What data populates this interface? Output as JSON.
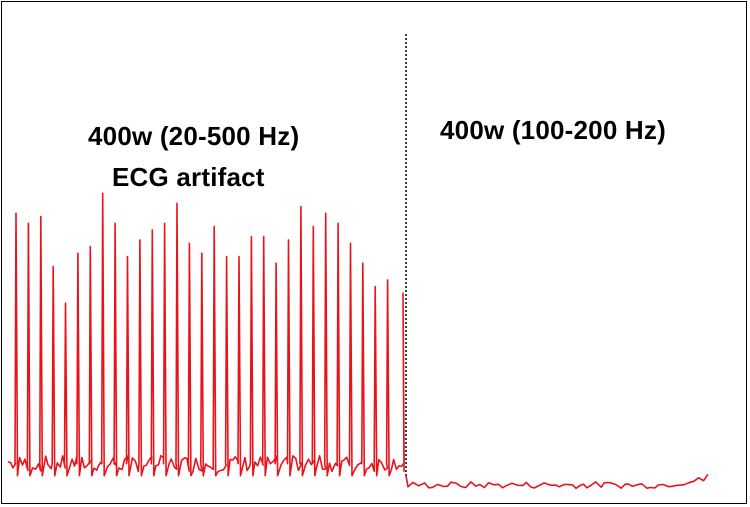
{
  "chart_data": {
    "type": "line",
    "annotations": {
      "left_line1": "400w (20-500 Hz)",
      "left_line2": "ECG artifact",
      "right": "400w (100-200 Hz)"
    },
    "divider": {
      "style": "dotted",
      "color": "#000000"
    },
    "series": [
      {
        "color": "#e8141b",
        "segment": "left",
        "baseline": 0.07,
        "spike_heights": [
          0.84,
          0.81,
          0.83,
          0.68,
          0.57,
          0.72,
          0.74,
          0.9,
          0.81,
          0.71,
          0.76,
          0.79,
          0.81,
          0.87,
          0.75,
          0.72,
          0.8,
          0.71,
          0.71,
          0.77,
          0.77,
          0.69,
          0.76,
          0.86,
          0.8,
          0.84,
          0.81,
          0.75,
          0.69,
          0.62,
          0.64
        ]
      },
      {
        "color": "#e8141b",
        "segment": "right",
        "baseline": 0.02,
        "noise_amplitude": 0.02
      }
    ]
  },
  "colors": {
    "trace": "#e8141b",
    "frame": "#000000"
  }
}
